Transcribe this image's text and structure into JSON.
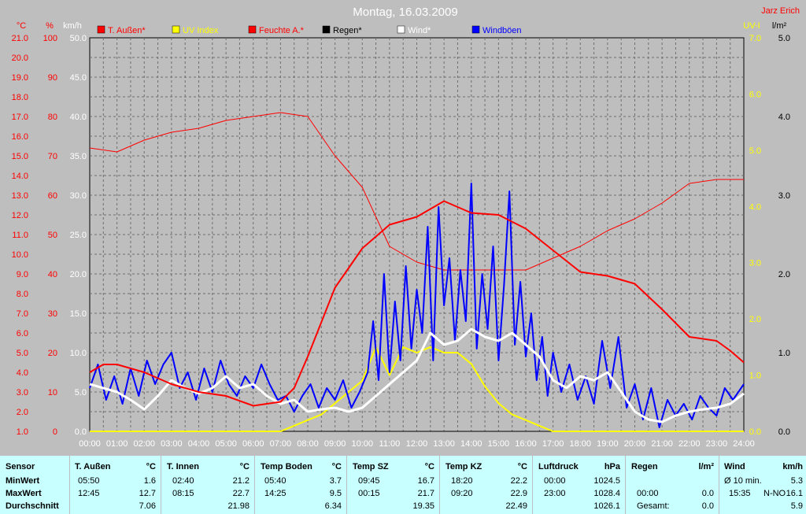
{
  "chart_data": {
    "type": "line",
    "title": "Montag, 16.03.2009",
    "author": "Jarz Erich",
    "x_ticks": [
      "00:00",
      "01:00",
      "02:00",
      "03:00",
      "04:00",
      "05:00",
      "06:00",
      "07:00",
      "08:00",
      "09:00",
      "10:00",
      "11:00",
      "12:00",
      "13:00",
      "14:00",
      "15:00",
      "16:00",
      "17:00",
      "18:00",
      "19:00",
      "20:00",
      "21:00",
      "22:00",
      "23:00",
      "24:00"
    ],
    "axes": {
      "temp": {
        "label": "°C",
        "range": [
          1.0,
          21.0
        ],
        "ticks": [
          "1.0",
          "2.0",
          "3.0",
          "4.0",
          "5.0",
          "6.0",
          "7.0",
          "8.0",
          "9.0",
          "10.0",
          "11.0",
          "12.0",
          "13.0",
          "14.0",
          "15.0",
          "16.0",
          "17.0",
          "18.0",
          "19.0",
          "20.0",
          "21.0"
        ]
      },
      "humidity": {
        "label": "%",
        "range": [
          0,
          100
        ],
        "ticks": [
          "0",
          "10",
          "20",
          "30",
          "40",
          "50",
          "60",
          "70",
          "80",
          "90",
          "100"
        ]
      },
      "wind": {
        "label": "km/h",
        "range": [
          0,
          50
        ],
        "ticks": [
          "0.0",
          "5.0",
          "10.0",
          "15.0",
          "20.0",
          "25.0",
          "30.0",
          "35.0",
          "40.0",
          "45.0",
          "50.0"
        ]
      },
      "uv": {
        "label": "UV-I",
        "range": [
          0,
          7
        ],
        "ticks": [
          "0.0",
          "1.0",
          "2.0",
          "3.0",
          "4.0",
          "5.0",
          "6.0",
          "7.0"
        ]
      },
      "rain": {
        "label": "l/m²",
        "range": [
          0,
          5
        ],
        "ticks": [
          "0.0",
          "1.0",
          "2.0",
          "3.0",
          "4.0",
          "5.0"
        ]
      }
    },
    "legend": [
      {
        "name": "T. Außen*",
        "color": "#ff0000"
      },
      {
        "name": "UV Index",
        "color": "#ffff00"
      },
      {
        "name": "Feuchte A.*",
        "color": "#ff0000"
      },
      {
        "name": "Regen*",
        "color": "#000000"
      },
      {
        "name": "Wind*",
        "color": "#ffffff"
      },
      {
        "name": "Windböen",
        "color": "#0000ff"
      }
    ],
    "series": {
      "temp_out": {
        "x": [
          0,
          0.5,
          1,
          2,
          3,
          4,
          5,
          6,
          7,
          7.5,
          8,
          9,
          10,
          11,
          12,
          13,
          14,
          15,
          16,
          17,
          18,
          19,
          20,
          21,
          22,
          23,
          23.5,
          24
        ],
        "y": [
          4.0,
          4.4,
          4.4,
          4.0,
          3.4,
          3.0,
          2.8,
          2.3,
          2.5,
          3.2,
          4.8,
          8.3,
          10.3,
          11.5,
          11.9,
          12.7,
          12.1,
          12.0,
          11.3,
          10.2,
          9.1,
          8.9,
          8.5,
          7.2,
          5.8,
          5.6,
          5.1,
          4.5
        ]
      },
      "humidity": {
        "x": [
          0,
          1,
          2,
          3,
          4,
          5,
          6,
          7,
          8,
          9,
          10,
          11,
          12,
          13,
          14,
          15,
          16,
          17,
          18,
          19,
          20,
          21,
          22,
          23,
          24
        ],
        "y": [
          72,
          71,
          74,
          76,
          77,
          79,
          80,
          81,
          80,
          70,
          62,
          47,
          43,
          41,
          41,
          41,
          41,
          44,
          47,
          51,
          54,
          58,
          63,
          64,
          64
        ]
      },
      "uv": {
        "x": [
          0,
          7.0,
          7.5,
          8,
          8.5,
          9,
          9.5,
          10,
          10.5,
          11,
          11.5,
          12,
          12.5,
          13,
          13.5,
          14,
          14.5,
          15,
          15.5,
          16,
          16.5,
          17,
          18,
          24
        ],
        "y": [
          0,
          0,
          0.1,
          0.2,
          0.3,
          0.5,
          0.7,
          0.9,
          1.5,
          1.0,
          1.5,
          1.4,
          1.5,
          1.4,
          1.4,
          1.2,
          0.8,
          0.5,
          0.3,
          0.2,
          0.1,
          0,
          0,
          0
        ]
      },
      "wind": {
        "x": [
          0,
          0.5,
          1,
          1.5,
          2,
          2.5,
          3,
          3.5,
          4,
          4.5,
          5,
          5.5,
          6,
          6.5,
          7,
          7.5,
          8,
          8.5,
          9,
          9.5,
          10,
          10.5,
          11,
          11.5,
          12,
          12.5,
          13,
          13.5,
          14,
          14.5,
          15,
          15.5,
          16,
          16.5,
          17,
          17.5,
          18,
          18.5,
          19,
          19.5,
          20,
          20.5,
          21,
          21.5,
          22,
          22.5,
          23,
          23.5,
          24
        ],
        "y": [
          6.0,
          5.5,
          5.0,
          4.0,
          2.8,
          4.5,
          6.5,
          5.5,
          4.8,
          5.5,
          7.0,
          5.5,
          6.0,
          4.5,
          3.5,
          4.0,
          2.5,
          2.8,
          3.0,
          2.5,
          3.0,
          4.5,
          6.0,
          7.5,
          9.0,
          12.5,
          11.0,
          11.5,
          13.0,
          12.0,
          11.5,
          12.5,
          11.0,
          9.5,
          6.5,
          5.5,
          7.0,
          6.5,
          7.5,
          5.0,
          2.5,
          1.5,
          1.2,
          2.0,
          2.5,
          2.8,
          3.0,
          3.5,
          4.8
        ]
      },
      "gusts": {
        "x": [
          0,
          0.3,
          0.6,
          0.9,
          1.2,
          1.5,
          1.8,
          2.1,
          2.4,
          2.7,
          3.0,
          3.3,
          3.6,
          3.9,
          4.2,
          4.5,
          4.8,
          5.1,
          5.4,
          5.7,
          6.0,
          6.3,
          6.6,
          6.9,
          7.2,
          7.5,
          7.8,
          8.1,
          8.4,
          8.7,
          9.0,
          9.3,
          9.6,
          9.9,
          10.2,
          10.4,
          10.6,
          10.8,
          11.0,
          11.2,
          11.4,
          11.6,
          11.8,
          12.0,
          12.2,
          12.4,
          12.6,
          12.8,
          13.0,
          13.2,
          13.4,
          13.6,
          13.8,
          14.0,
          14.2,
          14.4,
          14.6,
          14.8,
          15.0,
          15.2,
          15.4,
          15.6,
          15.8,
          16.0,
          16.2,
          16.4,
          16.6,
          16.8,
          17.0,
          17.3,
          17.6,
          17.9,
          18.2,
          18.5,
          18.8,
          19.1,
          19.4,
          19.7,
          20.0,
          20.3,
          20.6,
          20.9,
          21.2,
          21.5,
          21.8,
          22.1,
          22.4,
          22.7,
          23.0,
          23.3,
          23.6,
          24.0
        ],
        "y": [
          5.5,
          8.5,
          4.0,
          7.0,
          3.5,
          8.0,
          4.5,
          9.0,
          6.0,
          8.5,
          10.0,
          5.5,
          7.5,
          4.0,
          8.0,
          5.0,
          9.0,
          6.0,
          4.5,
          7.0,
          5.5,
          8.5,
          6.0,
          4.0,
          4.5,
          2.5,
          4.5,
          6.0,
          3.0,
          5.5,
          4.0,
          6.5,
          3.0,
          5.0,
          7.5,
          14.0,
          6.5,
          20.0,
          7.5,
          16.5,
          9.0,
          21.0,
          10.5,
          18.0,
          12.5,
          26.0,
          9.0,
          28.5,
          16.0,
          22.0,
          11.5,
          20.5,
          14.0,
          31.5,
          10.5,
          20.0,
          13.0,
          23.5,
          9.0,
          18.5,
          30.5,
          11.0,
          19.0,
          9.5,
          15.0,
          6.5,
          12.0,
          4.5,
          10.0,
          5.0,
          8.5,
          4.0,
          7.0,
          3.5,
          11.5,
          5.5,
          12.0,
          3.0,
          6.0,
          1.5,
          5.5,
          0.5,
          4.0,
          2.0,
          3.5,
          1.5,
          4.5,
          3.0,
          2.0,
          5.5,
          4.0,
          6.0
        ]
      },
      "rain": {
        "x": [
          0,
          24
        ],
        "y": [
          0,
          0
        ]
      }
    }
  },
  "stats": {
    "sensor": {
      "title": "Sensor",
      "min": "MinWert",
      "max": "MaxWert",
      "avg": "Durchschnitt"
    },
    "t_aussen": {
      "title": "T. Außen",
      "unit": "°C",
      "min_time": "05:50",
      "min": "1.6",
      "max_time": "12:45",
      "max": "12.7",
      "avg": "7.06"
    },
    "t_innen": {
      "title": "T. Innen",
      "unit": "°C",
      "min_time": "02:40",
      "min": "21.2",
      "max_time": "08:15",
      "max": "22.7",
      "avg": "21.98"
    },
    "temp_boden": {
      "title": "Temp Boden",
      "unit": "°C",
      "min_time": "05:40",
      "min": "3.7",
      "max_time": "14:25",
      "max": "9.5",
      "avg": "6.34"
    },
    "temp_sz": {
      "title": "Temp SZ",
      "unit": "°C",
      "min_time": "09:45",
      "min": "16.7",
      "max_time": "00:15",
      "max": "21.7",
      "avg": "19.35"
    },
    "temp_kz": {
      "title": "Temp KZ",
      "unit": "°C",
      "min_time": "18:20",
      "min": "22.2",
      "max_time": "09:20",
      "max": "22.9",
      "avg": "22.49"
    },
    "luftdruck": {
      "title": "Luftdruck",
      "unit": "hPa",
      "min_time": "00:00",
      "min": "1024.5",
      "max_time": "23:00",
      "max": "1028.4",
      "avg": "1026.1"
    },
    "regen": {
      "title": "Regen",
      "unit": "l/m²",
      "r1_label": "00:00",
      "r1": "0.0",
      "r2_label": "Gesamt:",
      "r2": "0.0"
    },
    "wind": {
      "title": "Wind",
      "unit": "km/h",
      "r1_label": "Ø 10 min.",
      "r1": "5.3",
      "r2_label": "15:35",
      "r2_dir": "N-NO",
      "r2": "16.1",
      "r3": "5.9"
    }
  }
}
